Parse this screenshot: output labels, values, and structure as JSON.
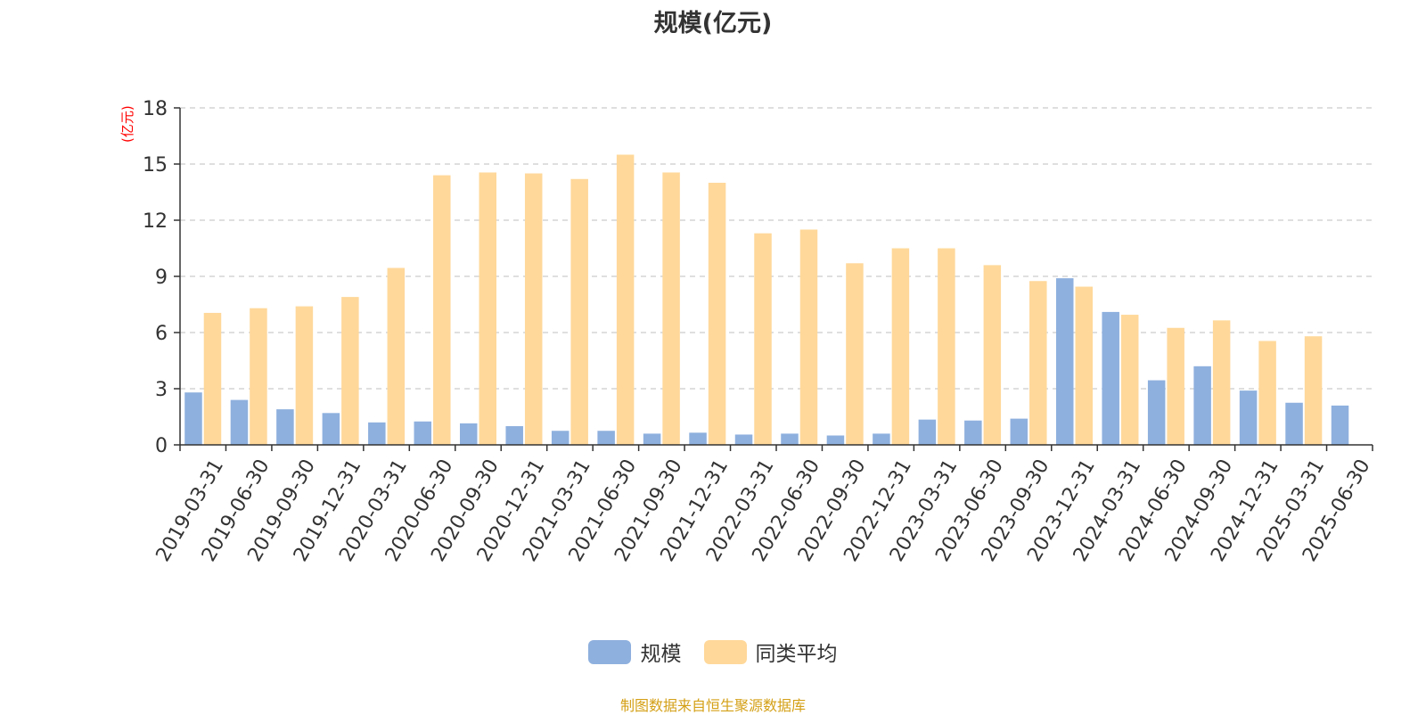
{
  "chart_data": {
    "type": "bar",
    "title": "规模(亿元)",
    "y_unit": "(亿元)",
    "xlabel": "",
    "ylabel": "",
    "ylim": [
      0,
      18
    ],
    "yticks": [
      0,
      3,
      6,
      9,
      12,
      15,
      18
    ],
    "grid": "horizontal-dashed",
    "legend_position": "bottom-center",
    "categories": [
      "2019-03-31",
      "2019-06-30",
      "2019-09-30",
      "2019-12-31",
      "2020-03-31",
      "2020-06-30",
      "2020-09-30",
      "2020-12-31",
      "2021-03-31",
      "2021-06-30",
      "2021-09-30",
      "2021-12-31",
      "2022-03-31",
      "2022-06-30",
      "2022-09-30",
      "2022-12-31",
      "2023-03-31",
      "2023-06-30",
      "2023-09-30",
      "2023-12-31",
      "2024-03-31",
      "2024-06-30",
      "2024-09-30",
      "2024-12-31",
      "2025-03-31",
      "2025-06-30"
    ],
    "series": [
      {
        "name": "规模",
        "color": "#8eb0de",
        "values": [
          2.8,
          2.4,
          1.9,
          1.7,
          1.2,
          1.25,
          1.15,
          1.0,
          0.75,
          0.75,
          0.6,
          0.65,
          0.55,
          0.6,
          0.5,
          0.6,
          1.35,
          1.3,
          1.4,
          8.9,
          7.1,
          3.45,
          4.2,
          2.9,
          2.25,
          2.1
        ]
      },
      {
        "name": "同类平均",
        "color": "#ffd89a",
        "values": [
          7.05,
          7.3,
          7.4,
          7.9,
          9.45,
          14.4,
          14.55,
          14.5,
          14.2,
          15.5,
          14.55,
          14.0,
          11.3,
          11.5,
          9.7,
          10.5,
          10.5,
          9.6,
          8.75,
          8.45,
          6.95,
          6.25,
          6.65,
          5.55,
          5.8,
          null
        ]
      }
    ]
  },
  "colors": {
    "title": "#333333",
    "axis": "#333333",
    "grid": "#cccccc",
    "y_unit": "#ff0000",
    "source": "#d4a017"
  },
  "source_note": "制图数据来自恒生聚源数据库"
}
